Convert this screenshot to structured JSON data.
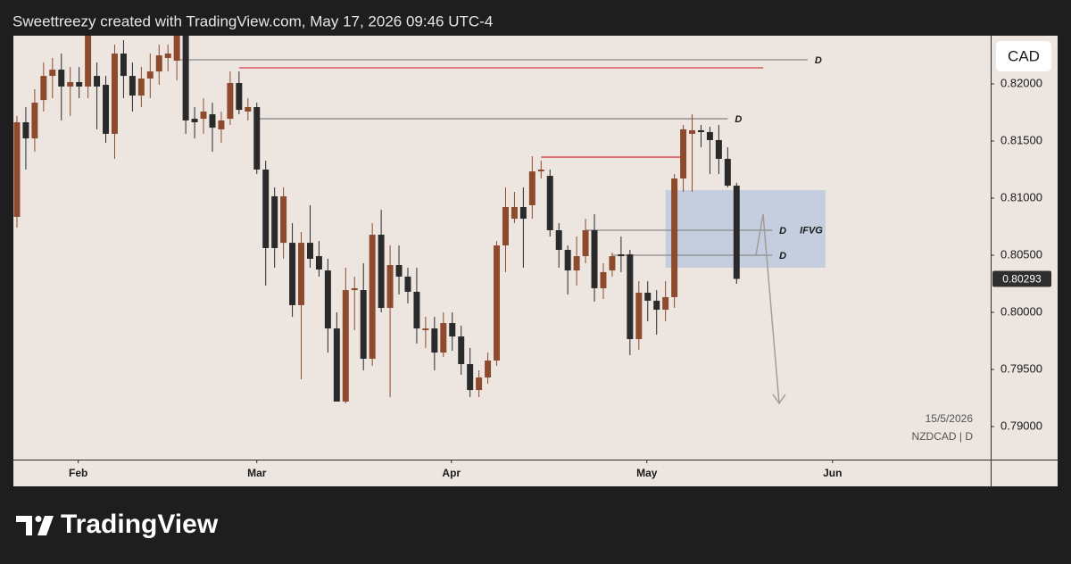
{
  "chart_data": {
    "type": "candlestick",
    "title": "Sweettreezy created with TradingView.com, May 17, 2026 09:46 UTC-4",
    "currency": "CAD",
    "date_label": "15/5/2026",
    "symbol_label": "NZDCAD | D",
    "up_color": "#8e4a2c",
    "down_color": "#2a2a2a",
    "categories": [
      null,
      null,
      null,
      null,
      null,
      null,
      null,
      null,
      null,
      null,
      null,
      null,
      null,
      null,
      null,
      null,
      null,
      null,
      null,
      null,
      null,
      null,
      null,
      null,
      null,
      null,
      null,
      null,
      null,
      null,
      null,
      null,
      null,
      null,
      null,
      null,
      null,
      null,
      null,
      null,
      null,
      null,
      null,
      null,
      null,
      null,
      null,
      null,
      null,
      null,
      null,
      null,
      null,
      null,
      null,
      null,
      null,
      null,
      null,
      null,
      null,
      null,
      null,
      null,
      null,
      null,
      null,
      null,
      null,
      null,
      null,
      null,
      null,
      null,
      null,
      null,
      null,
      null,
      null,
      null,
      null,
      null
    ],
    "open": [
      0.80836,
      0.81664,
      0.81523,
      0.81859,
      0.8207,
      0.82125,
      0.81977,
      0.82016,
      0.81977,
      0.8207,
      0.81992,
      0.81563,
      0.82266,
      0.8207,
      0.81898,
      0.82047,
      0.82109,
      0.82227,
      0.82203,
      0.82422,
      0.81695,
      0.81695,
      0.81734,
      0.81602,
      0.81695,
      0.82008,
      0.81758,
      0.81797,
      0.8125,
      0.81016,
      0.80609,
      0.80609,
      0.80063,
      0.80609,
      0.80492,
      0.80367,
      0.79859,
      0.79219,
      0.80195,
      0.80195,
      0.79594,
      0.8068,
      0.80039,
      0.80414,
      0.80313,
      0.8018,
      0.79844,
      0.79859,
      0.79648,
      0.79906,
      0.79789,
      0.79547,
      0.7932,
      0.7943,
      0.79578,
      0.80586,
      0.8082,
      0.80922,
      0.80938,
      0.81234,
      0.81195,
      0.80719,
      0.80547,
      0.80367,
      0.80492,
      0.80719,
      0.80211,
      0.80367,
      0.80508,
      0.80508,
      0.79766,
      0.80172,
      0.80102,
      0.80023,
      0.80133,
      0.81172,
      0.81563,
      0.81594,
      0.81578,
      0.81508,
      0.81344,
      0.81109
    ],
    "high": [
      0.81719,
      0.81797,
      0.81953,
      0.82188,
      0.82227,
      0.82266,
      0.82148,
      0.82148,
      0.82422,
      0.82188,
      0.8207,
      0.82344,
      0.82383,
      0.82188,
      0.82148,
      0.82266,
      0.82344,
      0.82344,
      0.82422,
      0.82422,
      0.81797,
      0.81875,
      0.81836,
      0.81758,
      0.82109,
      0.82109,
      0.81875,
      0.81836,
      0.81328,
      0.81094,
      0.81094,
      0.80781,
      0.80703,
      0.80938,
      0.80625,
      0.80469,
      0.8,
      0.80391,
      0.80313,
      0.8043,
      0.80781,
      0.80898,
      0.80586,
      0.80586,
      0.80391,
      0.80391,
      0.79961,
      0.79961,
      0.8,
      0.8,
      0.79883,
      0.79688,
      0.79492,
      0.79648,
      0.80625,
      0.81094,
      0.81055,
      0.81094,
      0.81367,
      0.81328,
      0.8125,
      0.80781,
      0.80586,
      0.80664,
      0.8082,
      0.80859,
      0.8043,
      0.80523,
      0.80664,
      0.80547,
      0.80273,
      0.80273,
      0.80195,
      0.80273,
      0.81211,
      0.81641,
      0.81734,
      0.81641,
      0.81625,
      0.81641,
      0.81445,
      0.81133
    ],
    "low": [
      0.80742,
      0.8125,
      0.81406,
      0.81758,
      0.81875,
      0.8168,
      0.81719,
      0.81875,
      0.81875,
      0.81602,
      0.81484,
      0.81344,
      0.81875,
      0.81758,
      0.81797,
      0.81875,
      0.81992,
      0.82109,
      0.82031,
      0.81563,
      0.81523,
      0.81563,
      0.81406,
      0.81484,
      0.81641,
      0.81734,
      0.8168,
      0.81211,
      0.80234,
      0.80391,
      0.80469,
      0.79961,
      0.79414,
      0.80391,
      0.80313,
      0.79648,
      0.79219,
      0.79203,
      0.79844,
      0.79492,
      0.79531,
      0.8,
      0.79258,
      0.80156,
      0.80078,
      0.79727,
      0.79688,
      0.79492,
      0.79609,
      0.79664,
      0.79453,
      0.79258,
      0.79258,
      0.79375,
      0.79531,
      0.80352,
      0.80781,
      0.80391,
      0.8082,
      0.81172,
      0.80664,
      0.80391,
      0.80156,
      0.80234,
      0.8043,
      0.80094,
      0.80117,
      0.80313,
      0.80352,
      0.79625,
      0.79672,
      0.79922,
      0.79805,
      0.79922,
      0.80039,
      0.81055,
      0.81055,
      0.81445,
      0.81211,
      0.81211,
      0.81094,
      0.8025
    ],
    "close": [
      0.81664,
      0.81523,
      0.81836,
      0.8207,
      0.82125,
      0.81977,
      0.82016,
      0.81977,
      0.82422,
      0.81977,
      0.81563,
      0.82266,
      0.8207,
      0.81898,
      0.82047,
      0.82109,
      0.8225,
      0.82266,
      0.82422,
      0.8168,
      0.81664,
      0.81758,
      0.81617,
      0.8168,
      0.82008,
      0.81773,
      0.81797,
      0.8125,
      0.80563,
      0.80563,
      0.81016,
      0.80063,
      0.80609,
      0.80469,
      0.80375,
      0.79859,
      0.79219,
      0.80195,
      0.80211,
      0.79594,
      0.8068,
      0.80039,
      0.80414,
      0.80313,
      0.8018,
      0.79859,
      0.79859,
      0.79648,
      0.79906,
      0.79789,
      0.79547,
      0.7932,
      0.7943,
      0.79578,
      0.80586,
      0.80922,
      0.80922,
      0.8082,
      0.81234,
      0.8125,
      0.80719,
      0.80547,
      0.80367,
      0.80492,
      0.80719,
      0.80211,
      0.80352,
      0.80492,
      0.80492,
      0.79766,
      0.80172,
      0.80102,
      0.80023,
      0.80133,
      0.81172,
      0.81602,
      0.81594,
      0.81578,
      0.81508,
      0.81344,
      0.81109,
      0.80293
    ],
    "xlim": [
      -0.4,
      109.6
    ],
    "xticks": [
      {
        "value": 6.9,
        "label": "Feb"
      },
      {
        "value": 27.0,
        "label": "Mar"
      },
      {
        "value": 48.9,
        "label": "Apr"
      },
      {
        "value": 70.9,
        "label": "May"
      },
      {
        "value": 91.8,
        "label": "Jun"
      }
    ],
    "ylim": [
      0.78711,
      0.82422
    ],
    "yticks": [
      {
        "value": 0.82,
        "label": "0.82000"
      },
      {
        "value": 0.815,
        "label": "0.81500"
      },
      {
        "value": 0.81,
        "label": "0.81000"
      },
      {
        "value": 0.805,
        "label": "0.80500"
      },
      {
        "value": 0.8,
        "label": "0.80000"
      },
      {
        "value": 0.795,
        "label": "0.79500"
      },
      {
        "value": 0.79,
        "label": "0.79000"
      }
    ],
    "grid": false,
    "levels": [
      {
        "value": 0.82211,
        "x": [
          18,
          89
        ],
        "color": "#8a8a8a",
        "label": "D"
      },
      {
        "value": 0.82141,
        "x": [
          25,
          84
        ],
        "color": "#d6404a"
      },
      {
        "value": 0.81695,
        "x": [
          27,
          80
        ],
        "color": "#8a8a8a",
        "label": "D"
      },
      {
        "value": 0.81359,
        "x": [
          59,
          75
        ],
        "color": "#d6404a"
      },
      {
        "value": 0.80719,
        "x": [
          64,
          85
        ],
        "color": "#8a8a8a",
        "label": "D"
      },
      {
        "value": 0.805,
        "x": [
          67,
          85
        ],
        "color": "#8a8a8a",
        "label": "D"
      }
    ],
    "zones": [
      {
        "top": 0.8107,
        "bottom": 0.80391,
        "x": [
          73,
          91
        ],
        "color": "#b7c6de",
        "label": "IFVG"
      }
    ]
  },
  "footer": {
    "brand": "TradingView"
  }
}
